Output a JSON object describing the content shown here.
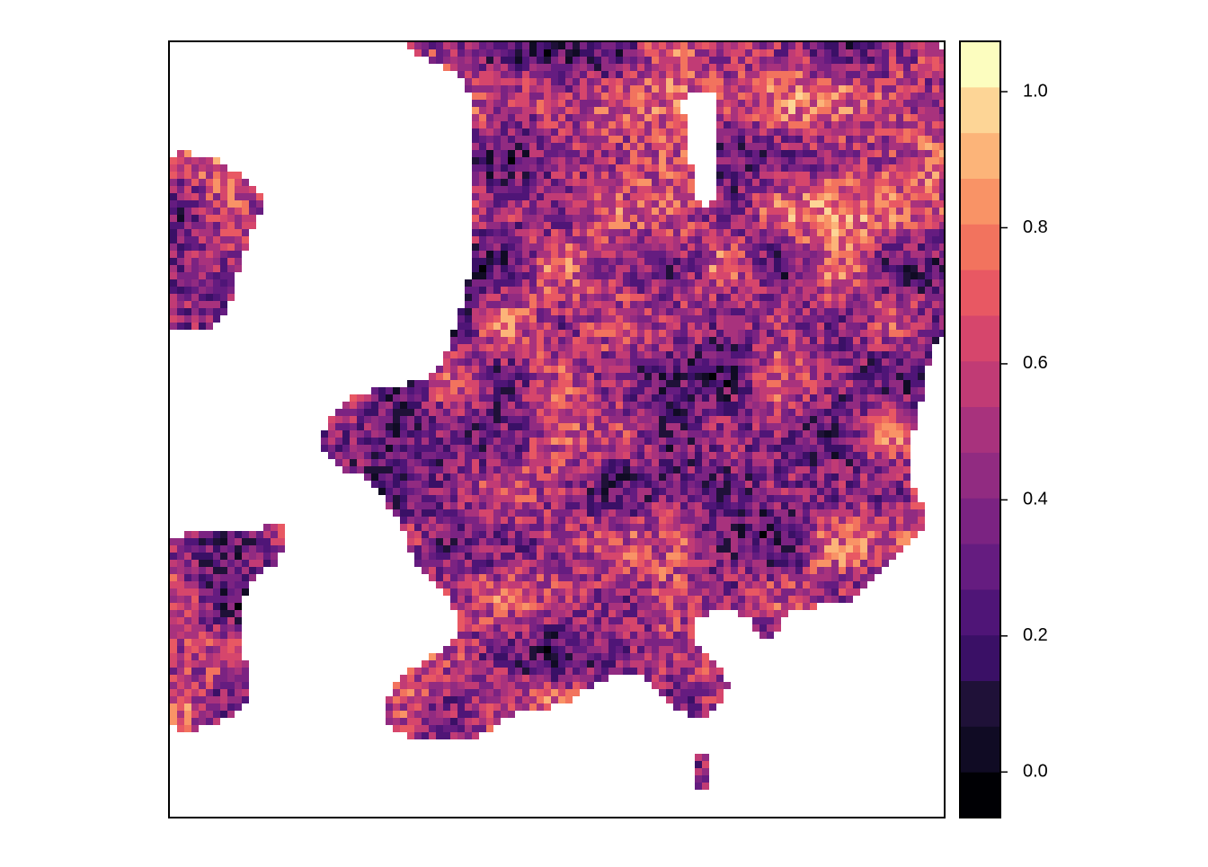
{
  "map": {
    "legend": {
      "range": [
        -0.067,
        1.074
      ],
      "colors": [
        "#000004",
        "#100b24",
        "#1f1138",
        "#3a1066",
        "#4f1577",
        "#651c80",
        "#7b2382",
        "#912b81",
        "#a8327d",
        "#c13b75",
        "#d6466c",
        "#e85863",
        "#f2735e",
        "#f99366",
        "#fcb479",
        "#fdd596",
        "#fcfdbf"
      ],
      "ticks": [
        {
          "value": 0,
          "label": "0.0"
        },
        {
          "value": 0.2,
          "label": "0.2"
        },
        {
          "value": 0.4,
          "label": "0.4"
        },
        {
          "value": 0.6,
          "label": "0.6"
        },
        {
          "value": 0.8,
          "label": "0.8"
        },
        {
          "value": 1,
          "label": "1.0"
        }
      ]
    }
  }
}
